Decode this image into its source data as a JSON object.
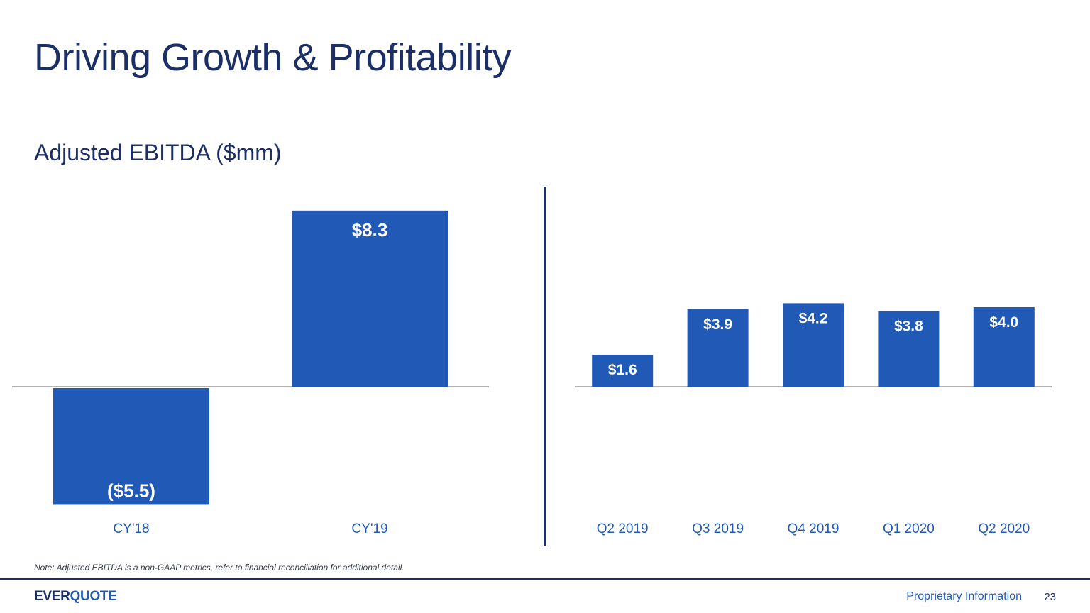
{
  "slide": {
    "title": "Driving Growth & Profitability",
    "subtitle": "Adjusted EBITDA ($mm)",
    "note": "Note: Adjusted EBITDA is a non-GAAP metrics, refer to financial reconciliation for additional detail.",
    "footer": {
      "logo_part1": "EVER",
      "logo_part2": "QUOTE",
      "label": "Proprietary Information",
      "page_number": "23"
    }
  },
  "colors": {
    "bar": "#2159b6",
    "title": "#1b2f66",
    "axis": "#9a9a9a",
    "bar_label": "#ffffff"
  },
  "chart_data": [
    {
      "type": "bar",
      "categories": [
        "CY'18",
        "CY'19"
      ],
      "values": [
        -5.5,
        8.3
      ],
      "data_labels": [
        "($5.5)",
        "$8.3"
      ],
      "ylabel": "",
      "xlabel": ""
    },
    {
      "type": "bar",
      "categories": [
        "Q2 2019",
        "Q3 2019",
        "Q4 2019",
        "Q1 2020",
        "Q2 2020"
      ],
      "values": [
        1.6,
        3.9,
        4.2,
        3.8,
        4.0
      ],
      "data_labels": [
        "$1.6",
        "$3.9",
        "$4.2",
        "$3.8",
        "$4.0"
      ],
      "ylabel": "",
      "xlabel": ""
    }
  ]
}
